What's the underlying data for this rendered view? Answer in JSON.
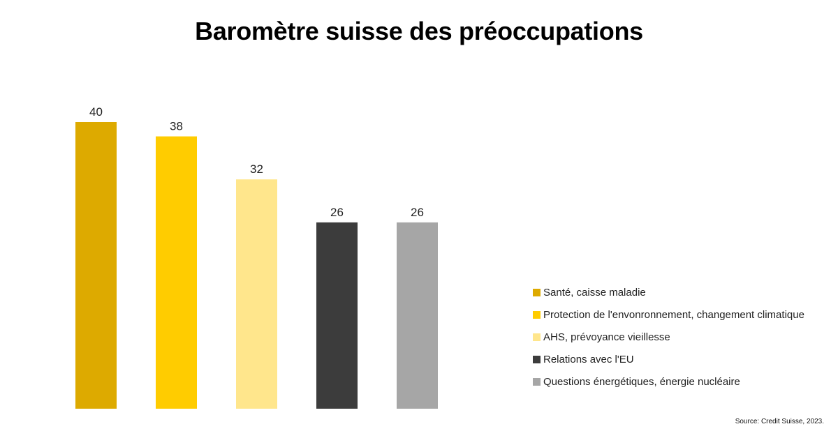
{
  "chart_data": {
    "type": "bar",
    "title": "Baromètre suisse des préoccupations",
    "categories": [
      "Santé, caisse maladie",
      "Protection de l'envonronnement, changement climatique",
      "AHS, prévoyance vieillesse",
      "Relations avec l'EU",
      "Questions énergétiques, énergie nucléaire"
    ],
    "values": [
      40,
      38,
      32,
      26,
      26
    ],
    "colors": [
      "#DDAA00",
      "#FFCC00",
      "#FFE68C",
      "#3C3C3C",
      "#A6A6A6"
    ],
    "ylim": [
      0,
      40
    ],
    "grid": false,
    "legend_position": "bottom-right",
    "data_labels": true
  },
  "source": "Source: Credit Suisse, 2023."
}
